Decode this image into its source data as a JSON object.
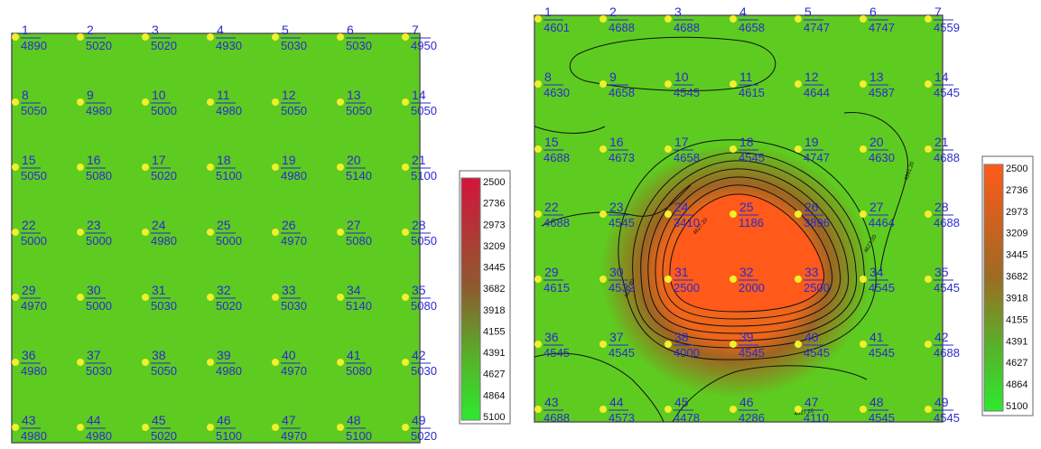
{
  "chart_data": [
    {
      "type": "heatmap",
      "title": "",
      "points": [
        {
          "id": "1",
          "value": "4890"
        },
        {
          "id": "2",
          "value": "5020"
        },
        {
          "id": "3",
          "value": "5020"
        },
        {
          "id": "4",
          "value": "4930"
        },
        {
          "id": "5",
          "value": "5030"
        },
        {
          "id": "6",
          "value": "5030"
        },
        {
          "id": "7",
          "value": "4950"
        },
        {
          "id": "8",
          "value": "5050"
        },
        {
          "id": "9",
          "value": "4980"
        },
        {
          "id": "10",
          "value": "5000"
        },
        {
          "id": "11",
          "value": "4980"
        },
        {
          "id": "12",
          "value": "5050"
        },
        {
          "id": "13",
          "value": "5050"
        },
        {
          "id": "14",
          "value": "5050"
        },
        {
          "id": "15",
          "value": "5050"
        },
        {
          "id": "16",
          "value": "5080"
        },
        {
          "id": "17",
          "value": "5020"
        },
        {
          "id": "18",
          "value": "5100"
        },
        {
          "id": "19",
          "value": "4980"
        },
        {
          "id": "20",
          "value": "5140"
        },
        {
          "id": "21",
          "value": "5100"
        },
        {
          "id": "22",
          "value": "5000"
        },
        {
          "id": "23",
          "value": "5000"
        },
        {
          "id": "24",
          "value": "4980"
        },
        {
          "id": "25",
          "value": "5000"
        },
        {
          "id": "26",
          "value": "4970"
        },
        {
          "id": "27",
          "value": "5080"
        },
        {
          "id": "28",
          "value": "5050"
        },
        {
          "id": "29",
          "value": "4970"
        },
        {
          "id": "30",
          "value": "5000"
        },
        {
          "id": "31",
          "value": "5030"
        },
        {
          "id": "32",
          "value": "5020"
        },
        {
          "id": "33",
          "value": "5030"
        },
        {
          "id": "34",
          "value": "5140"
        },
        {
          "id": "35",
          "value": "5080"
        },
        {
          "id": "36",
          "value": "4980"
        },
        {
          "id": "37",
          "value": "5030"
        },
        {
          "id": "38",
          "value": "5050"
        },
        {
          "id": "39",
          "value": "4980"
        },
        {
          "id": "40",
          "value": "4970"
        },
        {
          "id": "41",
          "value": "5080"
        },
        {
          "id": "42",
          "value": "5030"
        },
        {
          "id": "43",
          "value": "4980"
        },
        {
          "id": "44",
          "value": "4980"
        },
        {
          "id": "45",
          "value": "5020"
        },
        {
          "id": "46",
          "value": "5100"
        },
        {
          "id": "47",
          "value": "4970"
        },
        {
          "id": "48",
          "value": "5100"
        },
        {
          "id": "49",
          "value": "5020"
        }
      ],
      "colorbar": [
        "2500",
        "2736",
        "2973",
        "3209",
        "3445",
        "3682",
        "3918",
        "4155",
        "4391",
        "4627",
        "4864",
        "5100"
      ],
      "colors": {
        "low": "#d4143c",
        "high": "#2fe82f",
        "field": "#5ecb20",
        "point": "#f2ef2c",
        "label": "#2a2ad0"
      }
    },
    {
      "type": "heatmap",
      "title": "",
      "points": [
        {
          "id": "1",
          "value": "4601"
        },
        {
          "id": "2",
          "value": "4688"
        },
        {
          "id": "3",
          "value": "4688"
        },
        {
          "id": "4",
          "value": "4658"
        },
        {
          "id": "5",
          "value": "4747"
        },
        {
          "id": "6",
          "value": "4747"
        },
        {
          "id": "7",
          "value": "4559"
        },
        {
          "id": "8",
          "value": "4630"
        },
        {
          "id": "9",
          "value": "4658"
        },
        {
          "id": "10",
          "value": "4545"
        },
        {
          "id": "11",
          "value": "4615"
        },
        {
          "id": "12",
          "value": "4644"
        },
        {
          "id": "13",
          "value": "4587"
        },
        {
          "id": "14",
          "value": "4545"
        },
        {
          "id": "15",
          "value": "4688"
        },
        {
          "id": "16",
          "value": "4673"
        },
        {
          "id": "17",
          "value": "4658"
        },
        {
          "id": "18",
          "value": "4545"
        },
        {
          "id": "19",
          "value": "4747"
        },
        {
          "id": "20",
          "value": "4630"
        },
        {
          "id": "21",
          "value": "4688"
        },
        {
          "id": "22",
          "value": "4688"
        },
        {
          "id": "23",
          "value": "4545"
        },
        {
          "id": "24",
          "value": "3410"
        },
        {
          "id": "25",
          "value": "1186"
        },
        {
          "id": "26",
          "value": "3896"
        },
        {
          "id": "27",
          "value": "4464"
        },
        {
          "id": "28",
          "value": "4688"
        },
        {
          "id": "29",
          "value": "4615"
        },
        {
          "id": "30",
          "value": "4532"
        },
        {
          "id": "31",
          "value": "2500"
        },
        {
          "id": "32",
          "value": "2000"
        },
        {
          "id": "33",
          "value": "2500"
        },
        {
          "id": "34",
          "value": "4545"
        },
        {
          "id": "35",
          "value": "4545"
        },
        {
          "id": "36",
          "value": "4545"
        },
        {
          "id": "37",
          "value": "4545"
        },
        {
          "id": "38",
          "value": "4000"
        },
        {
          "id": "39",
          "value": "4545"
        },
        {
          "id": "40",
          "value": "4545"
        },
        {
          "id": "41",
          "value": "4545"
        },
        {
          "id": "42",
          "value": "4688"
        },
        {
          "id": "43",
          "value": "4688"
        },
        {
          "id": "44",
          "value": "4573"
        },
        {
          "id": "45",
          "value": "4478"
        },
        {
          "id": "46",
          "value": "4286"
        },
        {
          "id": "47",
          "value": "4110"
        },
        {
          "id": "48",
          "value": "4545"
        },
        {
          "id": "49",
          "value": "4545"
        }
      ],
      "colorbar": [
        "2500",
        "2736",
        "2973",
        "3209",
        "3445",
        "3682",
        "3918",
        "4155",
        "4391",
        "4627",
        "4864",
        "5100"
      ],
      "contour_labels": [
        "4627.20",
        "4627.20",
        "4627.20",
        "4627.20",
        "4391.20"
      ],
      "colors": {
        "low": "#ff5a1a",
        "high": "#2fe82f",
        "field": "#5ecb20",
        "point": "#f2ef2c",
        "label": "#2a2ad0",
        "contour": "#111111"
      }
    }
  ]
}
